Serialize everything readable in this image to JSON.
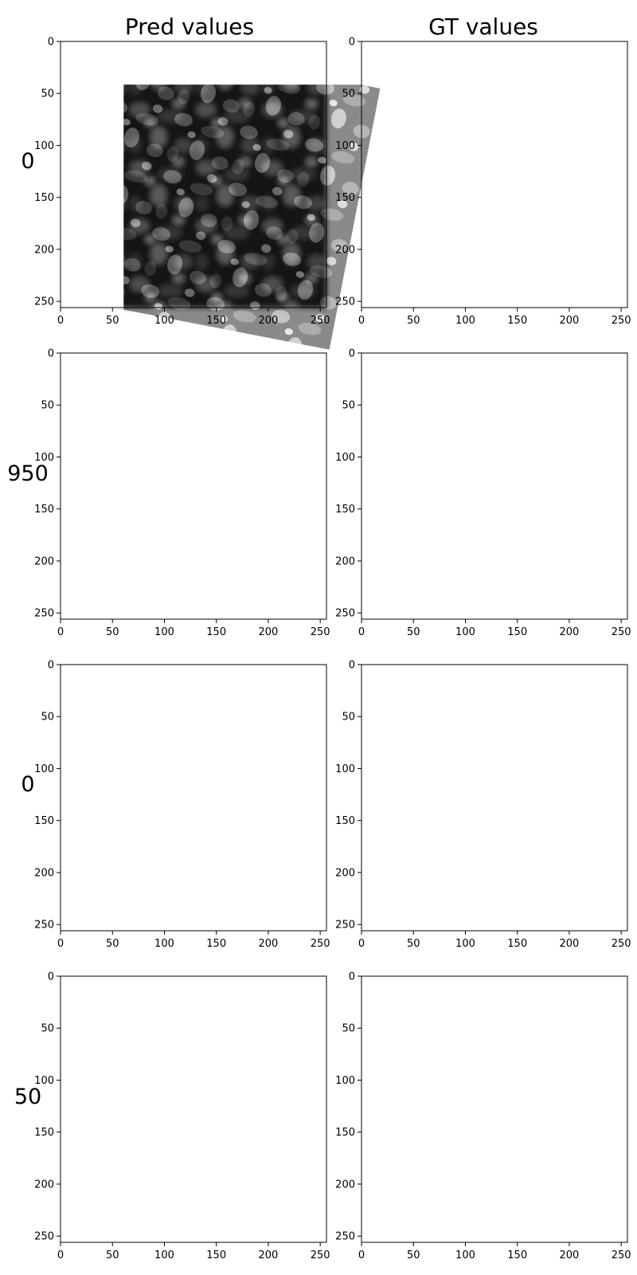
{
  "chart_data": {
    "type": "heatmap",
    "colormap": "gray",
    "columns": [
      "Pred values",
      "GT values"
    ],
    "rows": [
      {
        "label": "0",
        "pred": "noise",
        "pred_blur": 0,
        "gt": "image"
      },
      {
        "label": "950",
        "pred": "image",
        "pred_blur": 0.9,
        "gt": "image"
      },
      {
        "label": "0",
        "pred": "image",
        "pred_blur": 0.5,
        "gt": "image"
      },
      {
        "label": "50",
        "pred": "image",
        "pred_blur": 0.3,
        "gt": "image"
      }
    ],
    "xlim": [
      0,
      256
    ],
    "ylim": [
      256,
      0
    ],
    "x_ticks": [
      "0",
      "50",
      "100",
      "150",
      "200",
      "250"
    ],
    "y_ticks": [
      "0",
      "50",
      "100",
      "150",
      "200",
      "250"
    ],
    "grid": false
  }
}
